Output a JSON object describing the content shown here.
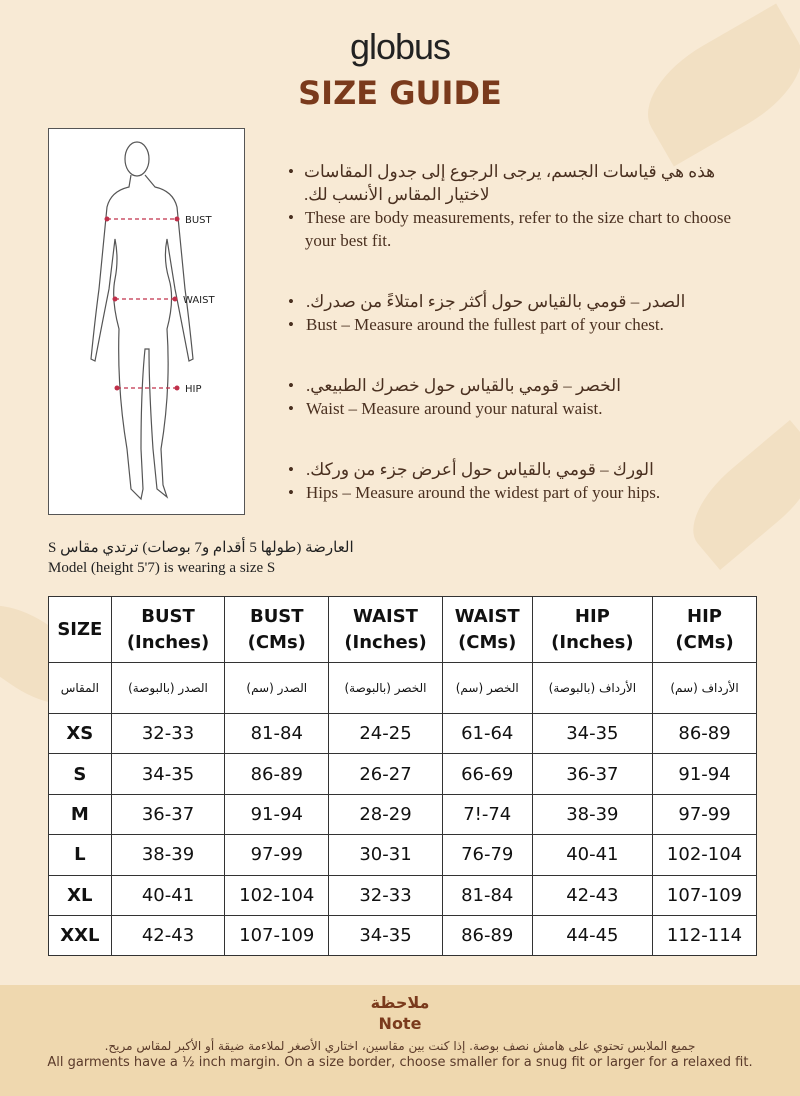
{
  "brand": "globus",
  "title": "SIZE GUIDE",
  "figure_labels": {
    "bust": "BUST",
    "waist": "WAIST",
    "hip": "HIP"
  },
  "bullets": [
    {
      "ar": "هذه هي قياسات الجسم، يرجى الرجوع إلى جدول المقاسات لاختيار المقاس الأنسب لك.",
      "en": "These are body measurements, refer to the size chart to choose your best fit."
    },
    {
      "ar": "الصدر – قومي بالقياس حول أكثر جزء امتلاءً من صدرك.",
      "en": "Bust – Measure around the fullest part of your chest."
    },
    {
      "ar": "الخصر – قومي بالقياس حول خصرك الطبيعي.",
      "en": "Waist – Measure around your natural waist."
    },
    {
      "ar": "الورك – قومي بالقياس حول أعرض جزء من وركك.",
      "en": "Hips – Measure around the widest part of your hips."
    }
  ],
  "model": {
    "ar": "العارضة (طولها 5 أقدام و7 بوصات) ترتدي مقاس S",
    "en": "Model (height 5'7) is wearing a size S"
  },
  "table": {
    "headers": [
      [
        "SIZE",
        ""
      ],
      [
        "BUST",
        "(Inches)"
      ],
      [
        "BUST",
        "(CMs)"
      ],
      [
        "WAIST",
        "(Inches)"
      ],
      [
        "WAIST",
        "(CMs)"
      ],
      [
        "HIP",
        "(Inches)"
      ],
      [
        "HIP",
        "(CMs)"
      ]
    ],
    "headers_ar": [
      "المقاس",
      "الصدر (بالبوصة)",
      "الصدر (سم)",
      "الخصر (بالبوصة)",
      "الخصر (سم)",
      "الأرداف (بالبوصة)",
      "الأرداف (سم)"
    ],
    "rows": [
      [
        "XS",
        "32-33",
        "81-84",
        "24-25",
        "61-64",
        "34-35",
        "86-89"
      ],
      [
        "S",
        "34-35",
        "86-89",
        "26-27",
        "66-69",
        "36-37",
        "91-94"
      ],
      [
        "M",
        "36-37",
        "91-94",
        "28-29",
        "7!-74",
        "38-39",
        "97-99"
      ],
      [
        "L",
        "38-39",
        "97-99",
        "30-31",
        "76-79",
        "40-41",
        "102-104"
      ],
      [
        "XL",
        "40-41",
        "102-104",
        "32-33",
        "81-84",
        "42-43",
        "107-109"
      ],
      [
        "XXL",
        "42-43",
        "107-109",
        "34-35",
        "86-89",
        "44-45",
        "112-114"
      ]
    ]
  },
  "note": {
    "title_ar": "ملاحظة",
    "title_en": "Note",
    "text_ar": "جميع الملابس تحتوي على هامش نصف بوصة. إذا كنت بين مقاسين، اختاري الأصغر لملاءمة ضيقة أو الأكبر لمقاس مريح.",
    "text_en": "All garments have a ½ inch margin. On a size border, choose smaller for a snug fit or larger for a relaxed fit."
  },
  "colors": {
    "background": "#f8ead5",
    "title": "#7a3a1c",
    "note_band": "#efd8af",
    "measure_line": "#c0304a"
  }
}
